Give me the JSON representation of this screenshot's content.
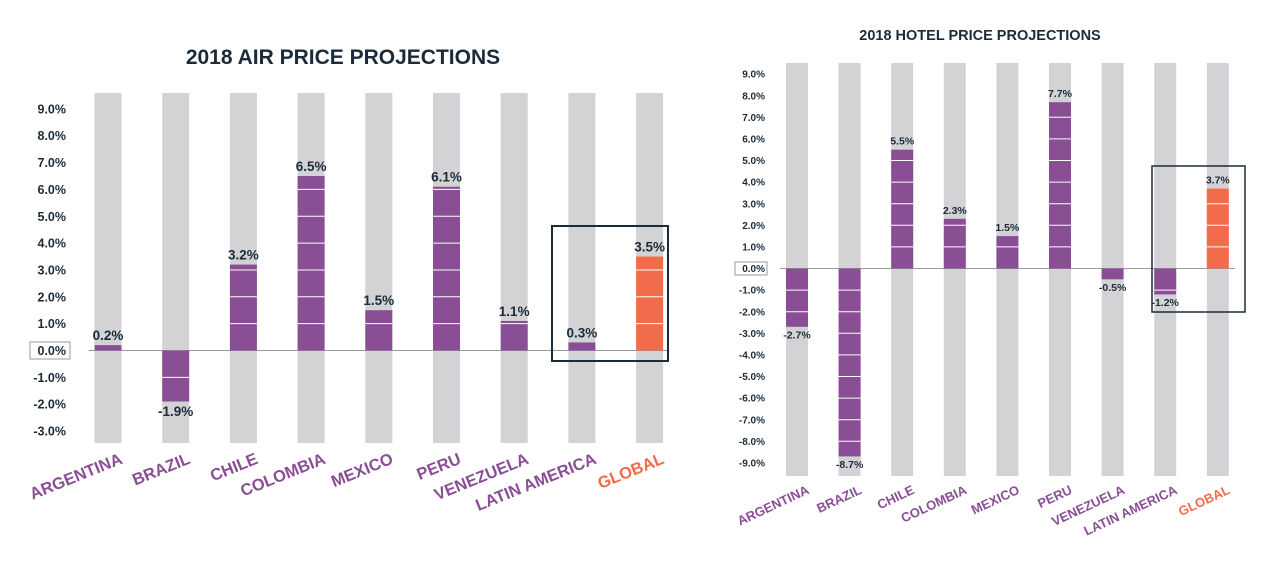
{
  "colors": {
    "bar_purple": "#8a4e95",
    "bar_global": "#f26b4a",
    "track_gray": "#d3d3d5",
    "text_dark": "#1c2b39",
    "label_purple": "#8a4e95",
    "label_global": "#f26b4a",
    "zero_line": "#9a9aa0",
    "highlight_box": "#1c2b39"
  },
  "chart_data": [
    {
      "type": "bar",
      "title": "2018 AIR PRICE PROJECTIONS",
      "categories": [
        "ARGENTINA",
        "BRAZIL",
        "CHILE",
        "COLOMBIA",
        "MEXICO",
        "PERU",
        "VENEZUELA",
        "LATIN AMERICA",
        "GLOBAL"
      ],
      "values": [
        0.2,
        -1.9,
        3.2,
        6.5,
        1.5,
        6.1,
        1.1,
        0.3,
        3.5
      ],
      "value_labels": [
        "0.2%",
        "-1.9%",
        "3.2%",
        "6.5%",
        "1.5%",
        "6.1%",
        "1.1%",
        "0.3%",
        "3.5%"
      ],
      "highlight_categories": [
        "GLOBAL"
      ],
      "boxed_categories": [
        "LATIN AMERICA",
        "GLOBAL"
      ],
      "yticks": [
        "9.0%",
        "8.0%",
        "7.0%",
        "6.0%",
        "5.0%",
        "4.0%",
        "3.0%",
        "2.0%",
        "1.0%",
        "0.0%",
        "-1.0%",
        "-2.0%",
        "-3.0%"
      ],
      "ytick_values": [
        9,
        8,
        7,
        6,
        5,
        4,
        3,
        2,
        1,
        0,
        -1,
        -2,
        -3
      ],
      "ylim": [
        -3.5,
        9.5
      ],
      "xlabel": "",
      "ylabel": "",
      "grid": false
    },
    {
      "type": "bar",
      "title": "2018 HOTEL PRICE PROJECTIONS",
      "categories": [
        "ARGENTINA",
        "BRAZIL",
        "CHILE",
        "COLOMBIA",
        "MEXICO",
        "PERU",
        "VENEZUELA",
        "LATIN AMERICA",
        "GLOBAL"
      ],
      "values": [
        -2.7,
        -8.7,
        5.5,
        2.3,
        1.5,
        7.7,
        -0.5,
        -1.2,
        3.7
      ],
      "value_labels": [
        "-2.7%",
        "-8.7%",
        "5.5%",
        "2.3%",
        "1.5%",
        "7.7%",
        "-0.5%",
        "-1.2%",
        "3.7%"
      ],
      "highlight_categories": [
        "GLOBAL"
      ],
      "boxed_categories": [
        "LATIN AMERICA",
        "GLOBAL"
      ],
      "yticks": [
        "9.0%",
        "8.0%",
        "7.0%",
        "6.0%",
        "5.0%",
        "4.0%",
        "3.0%",
        "2.0%",
        "1.0%",
        "0.0%",
        "-1.0%",
        "-2.0%",
        "-3.0%",
        "-4.0%",
        "-5.0%",
        "-6.0%",
        "-7.0%",
        "-8.0%",
        "-9.0%"
      ],
      "ytick_values": [
        9,
        8,
        7,
        6,
        5,
        4,
        3,
        2,
        1,
        0,
        -1,
        -2,
        -3,
        -4,
        -5,
        -6,
        -7,
        -8,
        -9
      ],
      "ylim": [
        -9.5,
        9.5
      ],
      "xlabel": "",
      "ylabel": "",
      "grid": false
    }
  ]
}
